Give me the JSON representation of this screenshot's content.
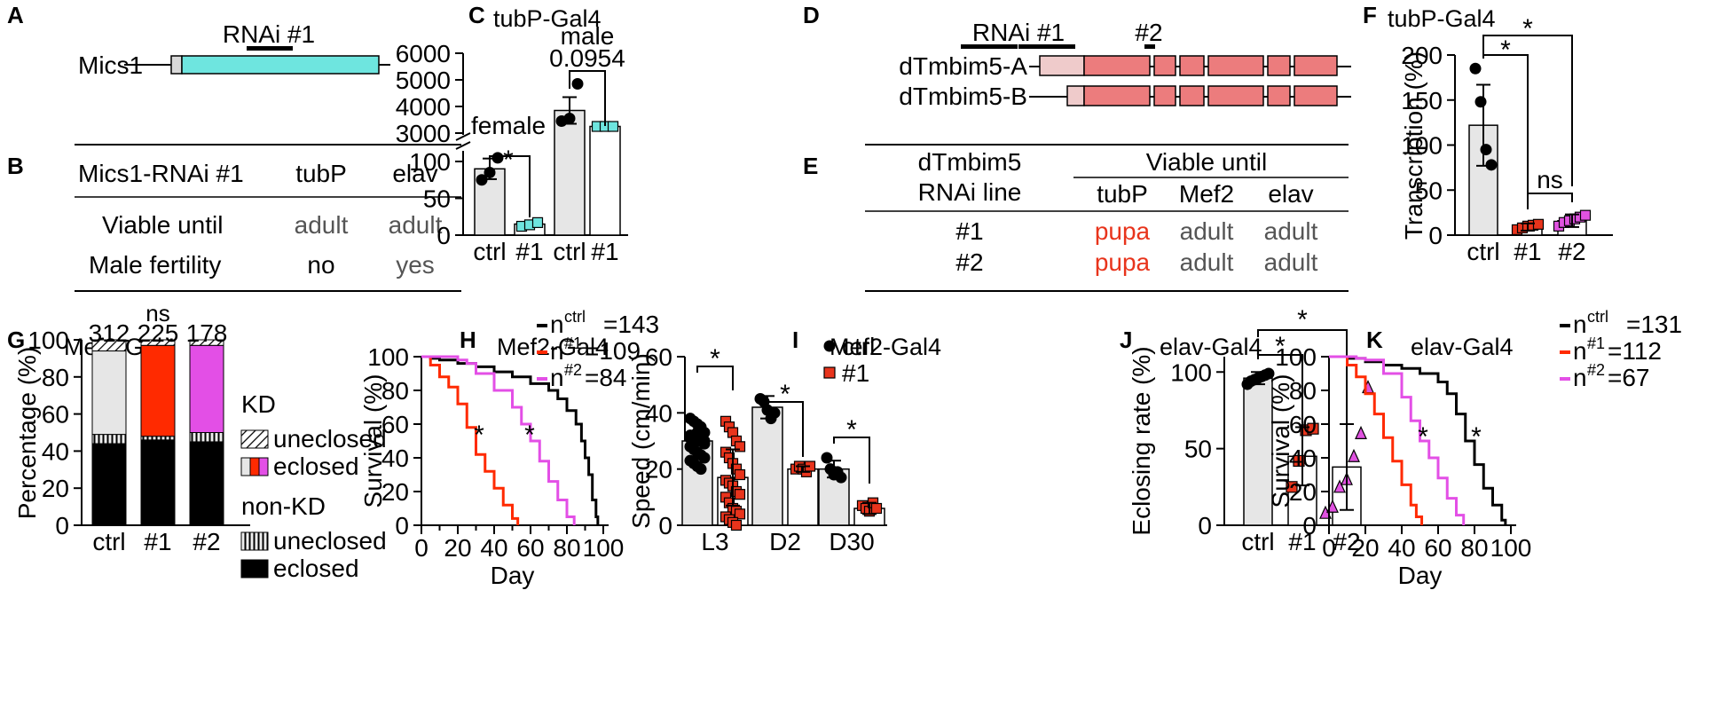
{
  "panel_letters": {
    "A": "A",
    "B": "B",
    "C": "C",
    "D": "D",
    "E": "E",
    "F": "F",
    "G": "G",
    "H": "H",
    "I": "I",
    "J": "J",
    "K": "K"
  },
  "panel_A": {
    "gene": "Mics1",
    "rnai": "RNAi #1",
    "colors": {
      "body": "#6ee5df",
      "utr": "#d9d9d9"
    }
  },
  "panel_B": {
    "headers": [
      "Mics1-RNAi #1",
      "tubP",
      "elav"
    ],
    "rows": [
      {
        "label": "Viable until",
        "tubP": "adult",
        "elav": "adult"
      },
      {
        "label": "Male fertility",
        "tubP": "no",
        "elav": "yes"
      }
    ]
  },
  "panel_D": {
    "gene_a": "dTmbim5-A",
    "gene_b": "dTmbim5-B",
    "rnai1": "RNAi #1",
    "rnai2": "#2",
    "colors": {
      "exon": "#ec7c7d",
      "utr": "#efcbcb"
    }
  },
  "panel_E": {
    "row_header": [
      "dTmbim5",
      "RNAi line"
    ],
    "group_header": "Viable until",
    "columns": [
      "tubP",
      "Mef2",
      "elav"
    ],
    "rows": [
      {
        "line": "#1",
        "tubP": "pupa",
        "Mef2": "adult",
        "elav": "adult"
      },
      {
        "line": "#2",
        "tubP": "pupa",
        "Mef2": "adult",
        "elav": "adult"
      }
    ],
    "colors": {
      "pupa": "#e8341c",
      "adult": "#555555"
    }
  },
  "chart_data": [
    {
      "panel": "C",
      "type": "bar",
      "title": "tubP-Gal4",
      "categories": [
        "ctrl",
        "#1",
        "ctrl",
        "#1"
      ],
      "values": [
        90,
        15,
        3850,
        3250
      ],
      "points": [
        [
          75,
          85,
          105
        ],
        [
          12,
          14,
          17
        ],
        [
          3450,
          3550,
          4850
        ],
        [
          3250,
          3250,
          3250
        ]
      ],
      "errors": [
        14,
        2,
        500,
        60
      ],
      "groups": [
        "female",
        "male"
      ],
      "annotations": [
        "*",
        "0.0954"
      ],
      "ylabel": "",
      "yticks_lower": [
        0,
        50,
        100
      ],
      "yticks_upper": [
        3000,
        4000,
        5000,
        6000
      ],
      "axis_break": true,
      "colors": {
        "ctrl": "#e6e6e6",
        "kd": "#6ee5df"
      }
    },
    {
      "panel": "F",
      "type": "bar",
      "title": "tubP-Gal4",
      "categories": [
        "ctrl",
        "#1",
        "#2"
      ],
      "values": [
        122,
        9,
        16
      ],
      "errors": [
        45,
        4,
        7
      ],
      "points": [
        [
          185,
          148,
          95,
          78
        ],
        [
          6,
          8,
          10,
          11,
          12
        ],
        [
          10,
          14,
          16,
          18,
          20,
          22
        ]
      ],
      "ylabel": "Transcription (%)",
      "ylim": [
        0,
        200
      ],
      "yticks": [
        0,
        50,
        100,
        150,
        200
      ],
      "annotations": [
        "*",
        "*",
        "ns"
      ],
      "colors": {
        "ctrl": "#e6e6e6",
        "#1": "#e8341c",
        "#2": "#e052e0"
      }
    },
    {
      "panel": "G",
      "type": "bar",
      "stacked": true,
      "title": "Mef2-Gal4",
      "categories": [
        "ctrl",
        "#1",
        "#2"
      ],
      "n": [
        "312",
        "225",
        "178"
      ],
      "annotation": "ns",
      "series": [
        {
          "name": "non-KD eclosed",
          "values": [
            44,
            46,
            45
          ]
        },
        {
          "name": "non-KD uneclosed",
          "values": [
            5,
            2,
            5
          ]
        },
        {
          "name": "KD eclosed",
          "values": [
            45,
            49,
            47
          ]
        },
        {
          "name": "KD uneclosed",
          "values": [
            6,
            3,
            3
          ]
        }
      ],
      "legend": {
        "kd": "KD",
        "uneclosed": "uneclosed",
        "eclosed": "eclosed",
        "nonkd": "non-KD"
      },
      "ylabel": "Percentage (%)",
      "ylim": [
        0,
        100
      ],
      "yticks": [
        0,
        20,
        40,
        60,
        80,
        100
      ],
      "colors": {
        "#1": "#ff2a00",
        "#2": "#e34fe6",
        "ctrl": "#e6e6e6"
      }
    },
    {
      "panel": "H",
      "type": "line",
      "title": "Mef2-Gal4",
      "xlabel": "Day",
      "ylabel": "Survival (%)",
      "xlim": [
        0,
        100
      ],
      "ylim": [
        0,
        100
      ],
      "xticks": [
        0,
        10,
        20,
        30,
        40,
        50,
        60,
        70,
        80,
        90,
        100
      ],
      "yticks": [
        0,
        20,
        40,
        60,
        80,
        100
      ],
      "annotations": [
        "*",
        "*"
      ],
      "series": [
        {
          "name": "n",
          "sup": "ctrl",
          "label": "=143",
          "color": "#000000",
          "x": [
            0,
            5,
            10,
            20,
            30,
            40,
            50,
            60,
            70,
            75,
            80,
            85,
            88,
            90,
            92,
            94,
            96,
            97
          ],
          "y": [
            100,
            99,
            98,
            96,
            94,
            91,
            88,
            84,
            80,
            75,
            68,
            60,
            50,
            40,
            30,
            15,
            5,
            0
          ]
        },
        {
          "name": "n",
          "sup": "#1",
          "label": "=109",
          "color": "#ff2a00",
          "x": [
            0,
            5,
            10,
            15,
            20,
            25,
            30,
            35,
            40,
            45,
            50,
            53
          ],
          "y": [
            100,
            95,
            88,
            82,
            72,
            58,
            42,
            32,
            22,
            12,
            4,
            0
          ]
        },
        {
          "name": "n",
          "sup": "#2",
          "label": "=84",
          "color": "#e34fe6",
          "x": [
            0,
            20,
            25,
            30,
            40,
            50,
            55,
            60,
            65,
            70,
            75,
            80,
            84
          ],
          "y": [
            100,
            98,
            96,
            90,
            80,
            70,
            60,
            50,
            38,
            26,
            15,
            5,
            0
          ]
        }
      ]
    },
    {
      "panel": "I",
      "type": "bar",
      "title": "Mef2-Gal4",
      "categories": [
        "L3",
        "D2",
        "D30"
      ],
      "ylabel": "Speed (cm/min)",
      "ylim": [
        0,
        60
      ],
      "yticks": [
        0,
        20,
        40,
        60
      ],
      "series": [
        {
          "name": "ctrl",
          "values": [
            30,
            42,
            20
          ],
          "errors": [
            6,
            4,
            3
          ]
        },
        {
          "name": "#1",
          "values": [
            17,
            20,
            6
          ],
          "errors": [
            10,
            1,
            2
          ]
        }
      ],
      "annotations": [
        "*",
        "*",
        "*"
      ],
      "colors": {
        "ctrl": "#e6e6e6",
        "#1": "#e8341c"
      }
    },
    {
      "panel": "J",
      "type": "bar",
      "title": "elav-Gal4",
      "categories": [
        "ctrl",
        "#1",
        "#2"
      ],
      "values": [
        96,
        45,
        38
      ],
      "errors": [
        4,
        19,
        28
      ],
      "points": [
        [
          92,
          94,
          95,
          96,
          97,
          98,
          99
        ],
        [
          25,
          42,
          62,
          63
        ],
        [
          8,
          12,
          25,
          30,
          45,
          60,
          90
        ]
      ],
      "ylabel": "Eclosing rate (%)",
      "ylim": [
        0,
        110
      ],
      "yticks": [
        0,
        50,
        100
      ],
      "annotations": [
        "*",
        "*"
      ],
      "colors": {
        "ctrl": "#e6e6e6",
        "#1": "#e8341c",
        "#2": "#e052e0"
      }
    },
    {
      "panel": "K",
      "type": "line",
      "title": "elav-Gal4",
      "xlabel": "Day",
      "ylabel": "Survival (%)",
      "xlim": [
        0,
        100
      ],
      "ylim": [
        0,
        100
      ],
      "xticks": [
        0,
        20,
        40,
        60,
        80,
        100
      ],
      "yticks": [
        0,
        20,
        40,
        60,
        80,
        100
      ],
      "annotations": [
        "*",
        "*"
      ],
      "series": [
        {
          "name": "n",
          "sup": "ctrl",
          "label": "=131",
          "color": "#000000",
          "x": [
            0,
            10,
            20,
            30,
            40,
            50,
            60,
            65,
            70,
            75,
            80,
            85,
            90,
            95,
            97
          ],
          "y": [
            100,
            99,
            97,
            95,
            93,
            90,
            85,
            78,
            66,
            50,
            36,
            22,
            12,
            3,
            0
          ]
        },
        {
          "name": "n",
          "sup": "#1",
          "label": "=112",
          "color": "#ff2a00",
          "x": [
            0,
            10,
            15,
            20,
            25,
            30,
            35,
            40,
            45,
            48,
            51
          ],
          "y": [
            100,
            95,
            88,
            78,
            66,
            52,
            38,
            24,
            12,
            5,
            0
          ]
        },
        {
          "name": "n",
          "sup": "#2",
          "label": "=67",
          "color": "#e34fe6",
          "x": [
            0,
            15,
            20,
            30,
            40,
            45,
            50,
            55,
            60,
            65,
            70,
            74
          ],
          "y": [
            100,
            99,
            98,
            90,
            76,
            62,
            50,
            40,
            28,
            16,
            6,
            0
          ]
        }
      ]
    }
  ]
}
